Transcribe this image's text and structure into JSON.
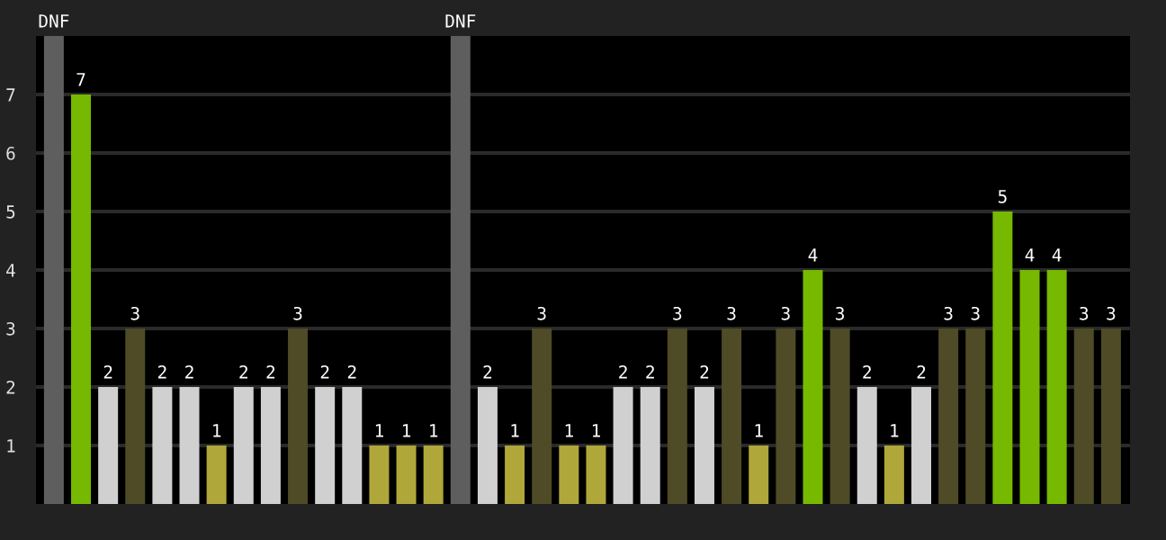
{
  "chart_data": {
    "type": "bar",
    "categories": [
      null,
      null,
      null,
      null,
      null,
      null,
      null,
      null,
      null,
      null,
      null,
      null,
      null,
      null,
      null,
      null,
      null,
      null,
      null,
      null,
      null,
      null,
      null,
      null,
      null,
      null,
      null,
      null,
      null,
      null,
      null,
      null,
      null,
      null,
      null,
      null,
      null,
      null,
      null,
      null
    ],
    "values": [
      8,
      7,
      2,
      3,
      2,
      2,
      1,
      2,
      2,
      3,
      2,
      2,
      1,
      1,
      1,
      8,
      2,
      1,
      3,
      1,
      1,
      2,
      2,
      3,
      2,
      3,
      1,
      3,
      4,
      3,
      2,
      1,
      2,
      3,
      3,
      5,
      4,
      4,
      3,
      3
    ],
    "value_labels": [
      "DNF",
      "7",
      "2",
      "3",
      "2",
      "2",
      "1",
      "2",
      "2",
      "3",
      "2",
      "2",
      "1",
      "1",
      "1",
      "DNF",
      "2",
      "1",
      "3",
      "1",
      "1",
      "2",
      "2",
      "3",
      "2",
      "3",
      "1",
      "3",
      "4",
      "3",
      "2",
      "1",
      "2",
      "3",
      "3",
      "5",
      "4",
      "4",
      "3",
      "3"
    ],
    "colors": [
      "#5e5e5e",
      "#76b900",
      "#d0d0d0",
      "#4e4b26",
      "#d0d0d0",
      "#d0d0d0",
      "#b0a73a",
      "#d0d0d0",
      "#d0d0d0",
      "#4e4b26",
      "#d0d0d0",
      "#d0d0d0",
      "#b0a73a",
      "#b0a73a",
      "#b0a73a",
      "#5e5e5e",
      "#d0d0d0",
      "#b0a73a",
      "#4e4b26",
      "#b0a73a",
      "#b0a73a",
      "#d0d0d0",
      "#d0d0d0",
      "#4e4b26",
      "#d0d0d0",
      "#4e4b26",
      "#b0a73a",
      "#4e4b26",
      "#76b900",
      "#4e4b26",
      "#d0d0d0",
      "#b0a73a",
      "#d0d0d0",
      "#4e4b26",
      "#4e4b26",
      "#76b900",
      "#76b900",
      "#76b900",
      "#4e4b26",
      "#4e4b26"
    ],
    "ylim": [
      0,
      8
    ],
    "yticks": [
      1,
      2,
      3,
      4,
      5,
      6,
      7
    ],
    "grid": "y"
  }
}
